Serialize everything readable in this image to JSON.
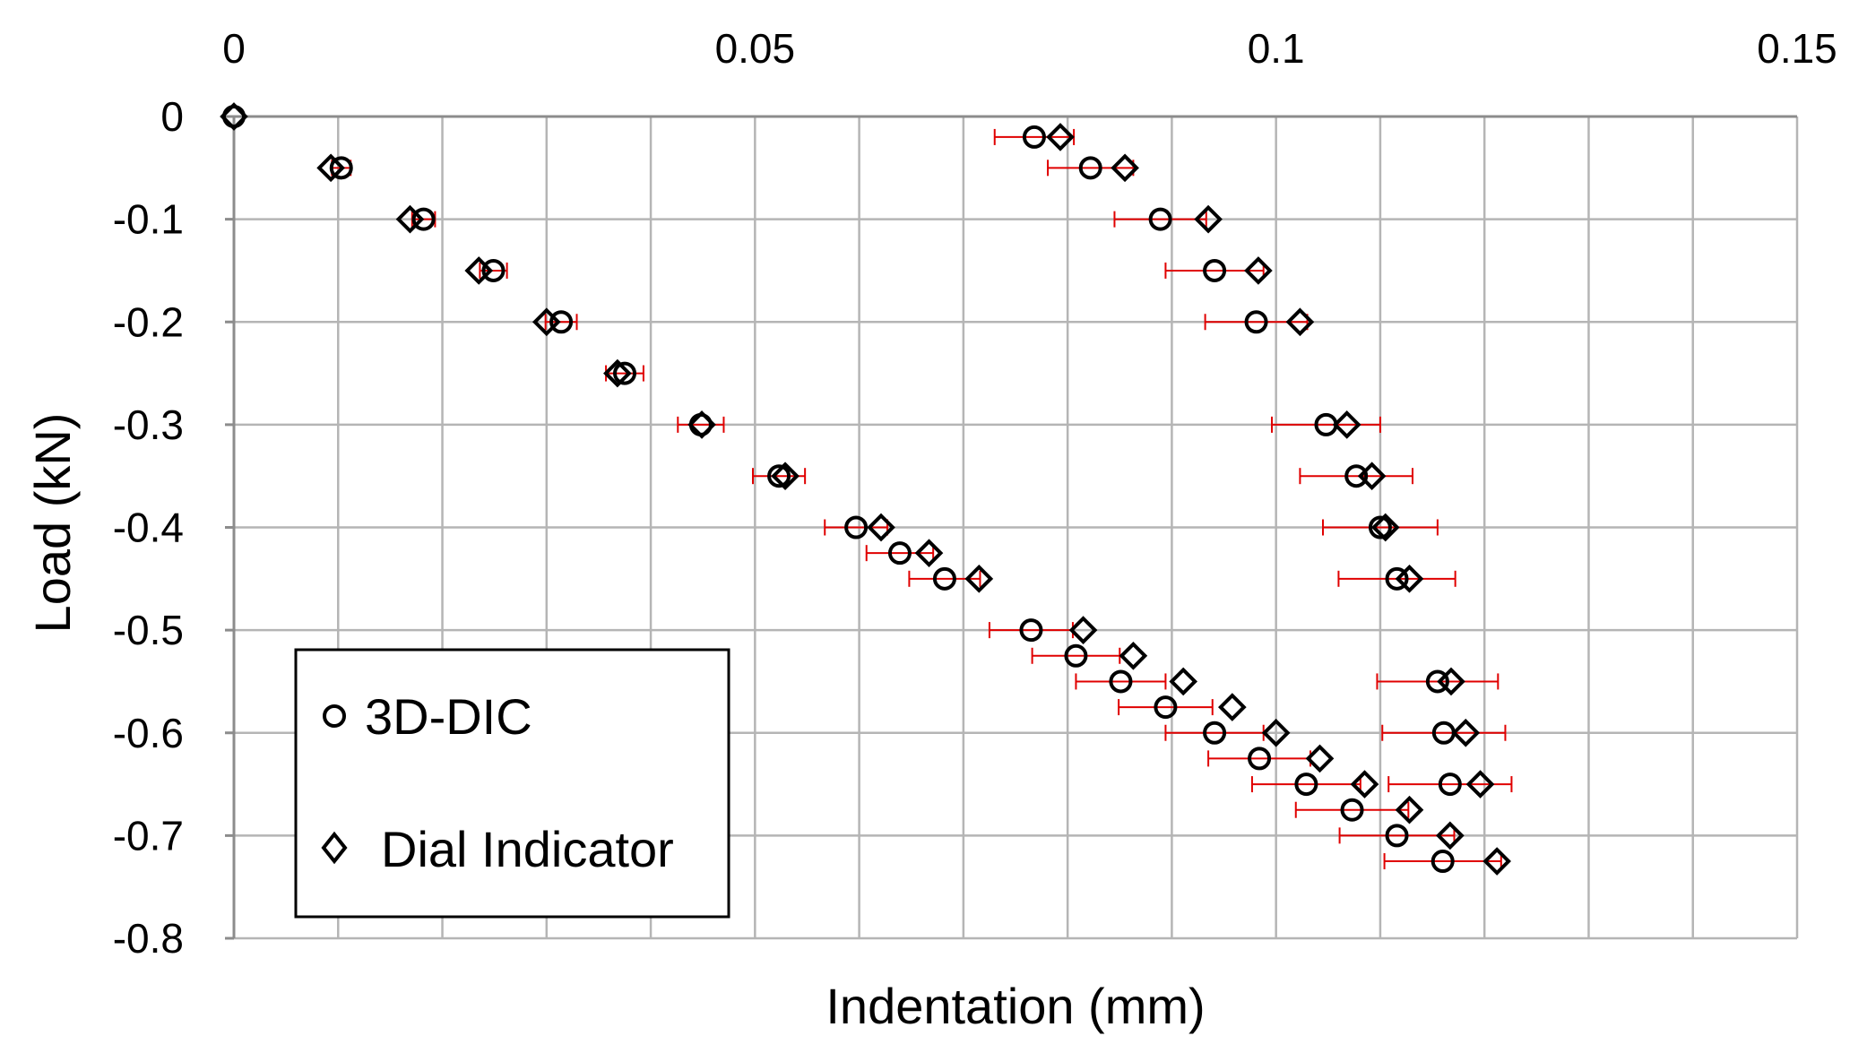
{
  "chart_data": {
    "type": "scatter",
    "title": "",
    "xlabel": "Indentation (mm)",
    "ylabel": "Load (kN)",
    "xlim": [
      0,
      0.15
    ],
    "ylim": [
      -0.8,
      0
    ],
    "x_ticks": [
      0,
      0.05,
      0.1,
      0.15
    ],
    "x_tick_labels": [
      "0",
      "0.05",
      "0.1",
      "0.15"
    ],
    "y_ticks": [
      0,
      -0.1,
      -0.2,
      -0.3,
      -0.4,
      -0.5,
      -0.6,
      -0.7,
      -0.8
    ],
    "y_tick_labels": [
      "0",
      "-0.1",
      "-0.2",
      "-0.3",
      "-0.4",
      "-0.5",
      "-0.6",
      "-0.7",
      "-0.8"
    ],
    "x_axis_position": "top",
    "grid": true,
    "minor_x_grid_step": 0.01,
    "legend_position": "bottom-left",
    "error_bar_color": "#e00000",
    "series": [
      {
        "name": "3D-DIC",
        "marker": "circle",
        "points": [
          {
            "x": 0.0,
            "y": 0.0,
            "err": 0
          },
          {
            "x": 0.0103,
            "y": -0.05,
            "err": 0.0009
          },
          {
            "x": 0.0182,
            "y": -0.1,
            "err": 0.0011
          },
          {
            "x": 0.0249,
            "y": -0.15,
            "err": 0.0013
          },
          {
            "x": 0.0314,
            "y": -0.2,
            "err": 0.0015
          },
          {
            "x": 0.0375,
            "y": -0.25,
            "err": 0.0018
          },
          {
            "x": 0.0448,
            "y": -0.3,
            "err": 0.0022
          },
          {
            "x": 0.0523,
            "y": -0.35,
            "err": 0.0025
          },
          {
            "x": 0.0597,
            "y": -0.4,
            "err": 0.003
          },
          {
            "x": 0.0639,
            "y": -0.425,
            "err": 0.0032
          },
          {
            "x": 0.0682,
            "y": -0.45,
            "err": 0.0034
          },
          {
            "x": 0.0765,
            "y": -0.5,
            "err": 0.004
          },
          {
            "x": 0.0808,
            "y": -0.525,
            "err": 0.0042
          },
          {
            "x": 0.0851,
            "y": -0.55,
            "err": 0.0043
          },
          {
            "x": 0.0894,
            "y": -0.575,
            "err": 0.0045
          },
          {
            "x": 0.0941,
            "y": -0.6,
            "err": 0.0047
          },
          {
            "x": 0.0984,
            "y": -0.625,
            "err": 0.0049
          },
          {
            "x": 0.1029,
            "y": -0.65,
            "err": 0.0052
          },
          {
            "x": 0.1073,
            "y": -0.675,
            "err": 0.0054
          },
          {
            "x": 0.1116,
            "y": -0.7,
            "err": 0.0055
          },
          {
            "x": 0.116,
            "y": -0.725,
            "err": 0.0056
          },
          {
            "x": 0.1155,
            "y": -0.55,
            "err": 0.0058
          },
          {
            "x": 0.1161,
            "y": -0.6,
            "err": 0.0059
          },
          {
            "x": 0.1167,
            "y": -0.65,
            "err": 0.0059
          },
          {
            "x": 0.1116,
            "y": -0.45,
            "err": 0.0056
          },
          {
            "x": 0.11,
            "y": -0.4,
            "err": 0.0055
          },
          {
            "x": 0.1077,
            "y": -0.35,
            "err": 0.0054
          },
          {
            "x": 0.1048,
            "y": -0.3,
            "err": 0.0052
          },
          {
            "x": 0.0981,
            "y": -0.2,
            "err": 0.0049
          },
          {
            "x": 0.0941,
            "y": -0.15,
            "err": 0.0047
          },
          {
            "x": 0.0889,
            "y": -0.1,
            "err": 0.0044
          },
          {
            "x": 0.0822,
            "y": -0.05,
            "err": 0.0041
          },
          {
            "x": 0.0768,
            "y": -0.02,
            "err": 0.0038
          }
        ]
      },
      {
        "name": "Dial Indicator",
        "marker": "diamond",
        "points": [
          {
            "x": 0.0,
            "y": 0.0
          },
          {
            "x": 0.0093,
            "y": -0.05
          },
          {
            "x": 0.0169,
            "y": -0.1
          },
          {
            "x": 0.0235,
            "y": -0.15
          },
          {
            "x": 0.03,
            "y": -0.2
          },
          {
            "x": 0.0368,
            "y": -0.25
          },
          {
            "x": 0.0449,
            "y": -0.3
          },
          {
            "x": 0.0529,
            "y": -0.35
          },
          {
            "x": 0.0621,
            "y": -0.4
          },
          {
            "x": 0.0667,
            "y": -0.425
          },
          {
            "x": 0.0715,
            "y": -0.45
          },
          {
            "x": 0.0815,
            "y": -0.5
          },
          {
            "x": 0.0863,
            "y": -0.525
          },
          {
            "x": 0.0911,
            "y": -0.55
          },
          {
            "x": 0.0958,
            "y": -0.575
          },
          {
            "x": 0.1,
            "y": -0.6
          },
          {
            "x": 0.1042,
            "y": -0.625
          },
          {
            "x": 0.1085,
            "y": -0.65
          },
          {
            "x": 0.1128,
            "y": -0.675
          },
          {
            "x": 0.1167,
            "y": -0.7
          },
          {
            "x": 0.1212,
            "y": -0.725
          },
          {
            "x": 0.1168,
            "y": -0.55
          },
          {
            "x": 0.1182,
            "y": -0.6
          },
          {
            "x": 0.1196,
            "y": -0.65
          },
          {
            "x": 0.1128,
            "y": -0.45
          },
          {
            "x": 0.1105,
            "y": -0.4
          },
          {
            "x": 0.1092,
            "y": -0.35
          },
          {
            "x": 0.1068,
            "y": -0.3
          },
          {
            "x": 0.1023,
            "y": -0.2
          },
          {
            "x": 0.0983,
            "y": -0.15
          },
          {
            "x": 0.0935,
            "y": -0.1
          },
          {
            "x": 0.0855,
            "y": -0.05
          },
          {
            "x": 0.0793,
            "y": -0.02
          }
        ]
      }
    ]
  }
}
